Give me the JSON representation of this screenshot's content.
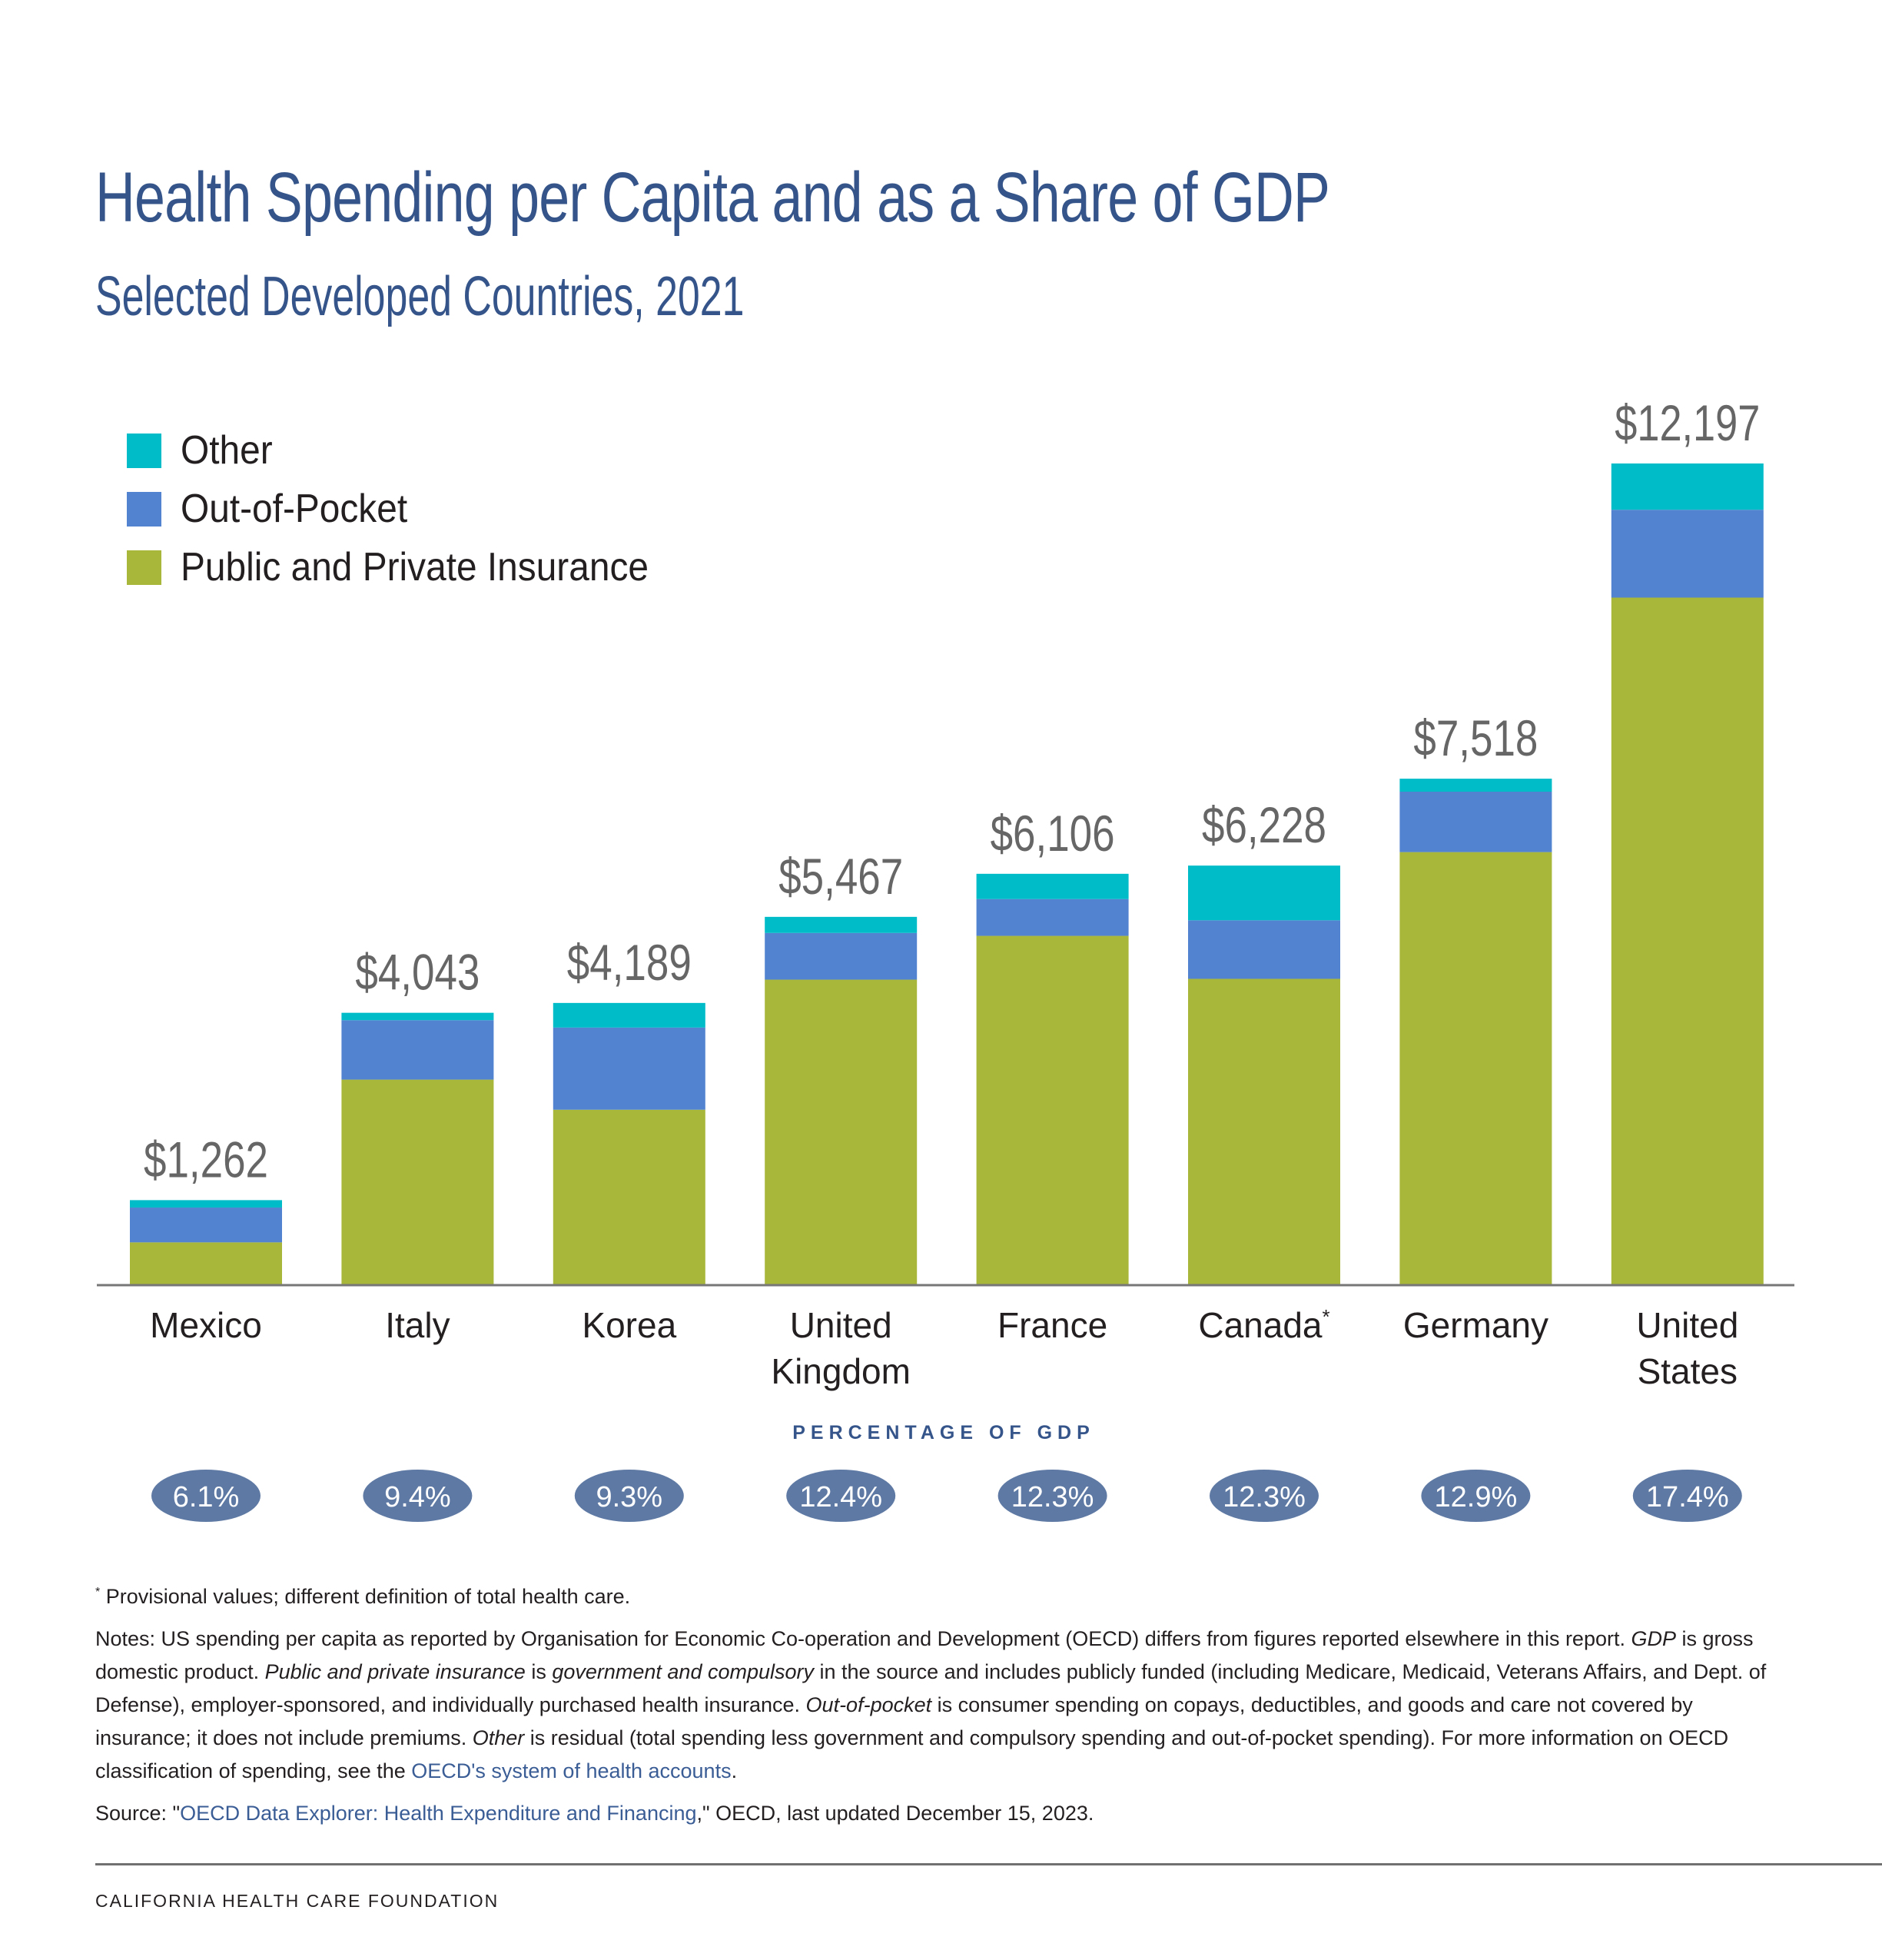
{
  "header": {
    "title": "Health Spending per Capita and as a Share of GDP",
    "subtitle": "Selected Developed Countries, 2021"
  },
  "legend": [
    {
      "label": "Other",
      "color": "#00bcc9"
    },
    {
      "label": "Out-of-Pocket",
      "color": "#5283d0"
    },
    {
      "label": "Public and Private Insurance",
      "color": "#a8b739"
    }
  ],
  "chart_data": {
    "type": "bar",
    "stacked": true,
    "title": "Health Spending per Capita and as a Share of GDP",
    "subtitle": "Selected Developed Countries, 2021",
    "xlabel": "",
    "ylabel": "",
    "ylim": [
      0,
      12197
    ],
    "grid": false,
    "legend_position": "top-left",
    "categories": [
      "Mexico",
      "Italy",
      "Korea",
      "United Kingdom",
      "France",
      "Canada*",
      "Germany",
      "United States"
    ],
    "category_lines": [
      [
        "Mexico"
      ],
      [
        "Italy"
      ],
      [
        "Korea"
      ],
      [
        "United",
        "Kingdom"
      ],
      [
        "France"
      ],
      [
        "Canada",
        "*"
      ],
      [
        "Germany"
      ],
      [
        "United",
        "States"
      ]
    ],
    "series": [
      {
        "name": "Public and Private Insurance",
        "color": "#a8b739",
        "values": [
          635,
          3051,
          2604,
          4535,
          5185,
          4547,
          6428,
          10206
        ]
      },
      {
        "name": "Out-of-Pocket",
        "color": "#5283d0",
        "values": [
          517,
          882,
          1220,
          693,
          546,
          869,
          897,
          1304
        ]
      },
      {
        "name": "Other",
        "color": "#00bcc9",
        "values": [
          110,
          110,
          365,
          239,
          375,
          812,
          193,
          687
        ]
      }
    ],
    "totals": [
      1262,
      4043,
      4189,
      5467,
      6106,
      6228,
      7518,
      12197
    ],
    "total_labels": [
      "$1,262",
      "$4,043",
      "$4,189",
      "$5,467",
      "$6,106",
      "$6,228",
      "$7,518",
      "$12,197"
    ],
    "gdp_share_title": "PERCENTAGE OF GDP",
    "gdp_share": [
      6.1,
      9.4,
      9.3,
      12.4,
      12.3,
      12.3,
      12.9,
      17.4
    ],
    "gdp_share_labels": [
      "6.1%",
      "9.4%",
      "9.3%",
      "12.4%",
      "12.3%",
      "12.3%",
      "12.9%",
      "17.4%"
    ],
    "gdp_pill_color": "#5e79a3"
  },
  "notes": {
    "footnote_mark": "*",
    "footnote": " Provisional values; different definition of total health care.",
    "n1": "Notes: US spending per capita as reported by Organisation for Economic Co-operation and Development (OECD) differs from figures reported elsewhere in this report. ",
    "n2_i": "GDP",
    "n3": " is gross domestic product. ",
    "n4_i": "Public and private insurance",
    "n5": " is ",
    "n6_i": "government and compulsory",
    "n7": " in the source and includes publicly funded (including Medicare, Medicaid, Veterans Affairs, and Dept. of Defense), employer-sponsored, and individually purchased health insurance. ",
    "n8_i": "Out-of-pocket",
    "n9": " is consumer spending on copays, deductibles, and goods and care not covered by insurance; it does not include premiums. ",
    "n10_i": "Other",
    "n11": " is residual (total spending less government and compulsory spending and out-of-pocket spending). For more information on OECD classification of spending, see the ",
    "n12_link": "OECD's system of health accounts",
    "n13": ".",
    "source_prefix": "Source: \"",
    "source_link": "OECD Data Explorer: Health Expenditure and Financing",
    "source_suffix": ",\" OECD, last updated December 15, 2023."
  },
  "footer": {
    "org": "CALIFORNIA HEALTH CARE FOUNDATION"
  }
}
